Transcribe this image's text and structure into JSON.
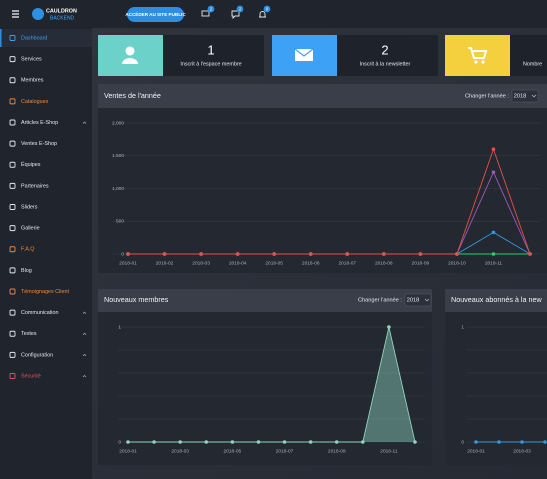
{
  "topbar": {
    "logo_title": "CAULDRON",
    "logo_subtitle": "BACKEND",
    "button": "ACCÉDER AU SITE PUBLIC",
    "badges": [
      2,
      2,
      0
    ]
  },
  "sidebar": {
    "items": [
      "Dashboard",
      "Services",
      "Membres",
      "Catalogues",
      "Articles E-Shop",
      "Ventes E-Shop",
      "Équipes",
      "Partenaires",
      "Sliders",
      "Gallerie",
      "F.A.Q",
      "Blog",
      "Témoignages Client",
      "Communication",
      "Textes",
      "Configuration",
      "Sécurité"
    ]
  },
  "stats": [
    {
      "value": 1,
      "label": "Inscrit à l'espace membre",
      "color": "#6cd1c9"
    },
    {
      "value": 2,
      "label": "Inscrit à la newsletter",
      "color": "#3da2f5"
    },
    {
      "label": "Nombre",
      "color": "#f4cf3e"
    }
  ],
  "chart_data": [
    {
      "type": "line",
      "title": "Ventes de l'année",
      "year_label": "Changer l'année :",
      "year": "2018",
      "categories": [
        "2018-01",
        "2018-02",
        "2018-03",
        "2018-04",
        "2018-05",
        "2018-06",
        "2018-07",
        "2018-08",
        "2018-09",
        "2018-10",
        "2018-11",
        null
      ],
      "series": [
        {
          "color": "#2ecc71",
          "values": [
            0,
            0,
            0,
            0,
            0,
            0,
            0,
            0,
            0,
            0,
            0,
            0
          ]
        },
        {
          "color": "#3498db",
          "values": [
            0,
            0,
            0,
            0,
            0,
            0,
            0,
            0,
            0,
            0,
            330,
            0
          ]
        },
        {
          "color": "#9b59b6",
          "values": [
            0,
            0,
            0,
            0,
            0,
            0,
            0,
            0,
            0,
            0,
            1250,
            0
          ]
        },
        {
          "color": "#e0534a",
          "values": [
            0,
            0,
            0,
            0,
            0,
            0,
            0,
            0,
            0,
            0,
            1600,
            0
          ]
        }
      ],
      "ylim": [
        0,
        2000
      ],
      "yticks": [
        0,
        500,
        {
          "value": 1000,
          "label": "1,000"
        },
        {
          "value": 1500,
          "label": "1,500"
        },
        {
          "value": 2000,
          "label": "2,000"
        }
      ],
      "grid": true
    },
    {
      "type": "area",
      "title": "Nouveaux membres",
      "year_label": "Changer l'année :",
      "year": "2018",
      "categories": [
        "2018-01",
        null,
        "2018-03",
        null,
        "2018-05",
        null,
        "2018-07",
        null,
        "2018-09",
        null,
        "2018-11",
        null
      ],
      "values": [
        0,
        0,
        0,
        0,
        0,
        0,
        0,
        0,
        0,
        0,
        1,
        0
      ],
      "color": "#8fd3c1",
      "ylim": [
        0,
        1
      ],
      "yticks": [
        0,
        1
      ],
      "minor_grid": [
        0.2,
        0.4,
        0.6,
        0.8
      ],
      "grid": true
    },
    {
      "type": "line",
      "title": "Nouveaux abonnés à la new",
      "categories": [
        "2018-01",
        null,
        "2018-03",
        null
      ],
      "values": [
        0,
        0,
        0,
        0
      ],
      "color": "#3498db",
      "ylim": [
        0,
        1
      ],
      "yticks": [
        0,
        1
      ],
      "minor_grid": [
        0.2,
        0.4,
        0.6,
        0.8
      ],
      "grid": true
    }
  ]
}
